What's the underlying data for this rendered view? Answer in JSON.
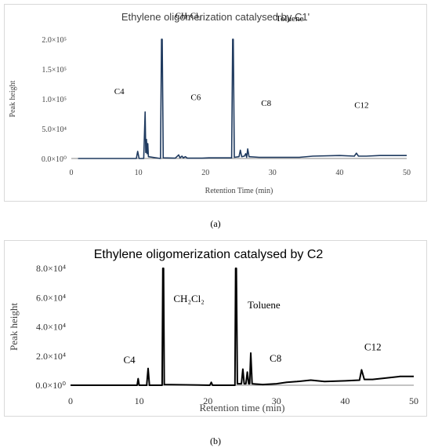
{
  "chart_data": [
    {
      "type": "line",
      "title": "Ethylene oligomerization catalysed by C1'",
      "xlabel": "Retention Time (min)",
      "ylabel": "Peak height",
      "xlim": [
        0,
        50
      ],
      "ylim": [
        0,
        200000
      ],
      "x_ticks": [
        "0",
        "10",
        "20",
        "30",
        "40",
        "50"
      ],
      "y_ticks": [
        "0.0×10⁰",
        "5.0×10⁴",
        "1.0×10⁵",
        "1.5×10⁵",
        "2.0×10⁵"
      ],
      "line_color": "#1f3a5f",
      "grid": false,
      "annotations": [
        {
          "text": "C4",
          "x": 6.4,
          "y": 108000
        },
        {
          "text": "CH₂Cl₂",
          "x": 15.5,
          "y": 235000
        },
        {
          "text": "C6",
          "x": 17.8,
          "y": 98000
        },
        {
          "text": "Toluene",
          "x": 30.5,
          "y": 230000
        },
        {
          "text": "C8",
          "x": 28.3,
          "y": 88000
        },
        {
          "text": "C12",
          "x": 42.2,
          "y": 85000
        }
      ],
      "series": [
        {
          "points": [
            [
              1,
              0
            ],
            [
              5,
              0
            ],
            [
              9.7,
              0
            ],
            [
              9.9,
              12000
            ],
            [
              10.1,
              0
            ],
            [
              10.8,
              0
            ],
            [
              11.0,
              78000
            ],
            [
              11.1,
              10000
            ],
            [
              11.2,
              32000
            ],
            [
              11.3,
              8000
            ],
            [
              11.4,
              25000
            ],
            [
              11.5,
              3000
            ],
            [
              13.3,
              0
            ],
            [
              13.45,
              200000
            ],
            [
              13.55,
              200000
            ],
            [
              13.7,
              1000
            ],
            [
              15.5,
              500
            ],
            [
              16.0,
              6000
            ],
            [
              16.2,
              1000
            ],
            [
              16.5,
              4000
            ],
            [
              16.7,
              1000
            ],
            [
              17.0,
              3000
            ],
            [
              17.3,
              500
            ],
            [
              19.5,
              500
            ],
            [
              20.5,
              1000
            ],
            [
              23.9,
              1000
            ],
            [
              24.05,
              200000
            ],
            [
              24.15,
              200000
            ],
            [
              24.3,
              2000
            ],
            [
              25.0,
              3000
            ],
            [
              25.2,
              14000
            ],
            [
              25.4,
              3000
            ],
            [
              25.8,
              4000
            ],
            [
              26.0,
              8000
            ],
            [
              26.15,
              2000
            ],
            [
              26.3,
              16000
            ],
            [
              26.5,
              3000
            ],
            [
              28,
              2000
            ],
            [
              30,
              2000
            ],
            [
              34,
              2000
            ],
            [
              36,
              4000
            ],
            [
              40,
              5000
            ],
            [
              42.2,
              4000
            ],
            [
              42.5,
              9000
            ],
            [
              42.8,
              4000
            ],
            [
              44,
              4000
            ],
            [
              46,
              5000
            ],
            [
              48,
              5000
            ],
            [
              50,
              5000
            ]
          ]
        }
      ]
    },
    {
      "type": "line",
      "title": "Ethylene oligomerization catalysed by C2",
      "xlabel": "Retention time (min)",
      "ylabel": "Peak height",
      "xlim": [
        0,
        50
      ],
      "ylim": [
        0,
        80000
      ],
      "x_ticks": [
        "0",
        "10",
        "20",
        "30",
        "40",
        "50"
      ],
      "y_ticks": [
        "0.0×10⁰",
        "2.0×10⁴",
        "4.0×10⁴",
        "6.0×10⁴",
        "8.0×10⁴"
      ],
      "line_color": "#000000",
      "grid": false,
      "annotations": [
        {
          "text": "C4",
          "x": 7.7,
          "y": 15000
        },
        {
          "text": "CH₂Cl₂",
          "x": 15.0,
          "y": 57000
        },
        {
          "text": "Toluene",
          "x": 25.8,
          "y": 52500
        },
        {
          "text": "C8",
          "x": 29.0,
          "y": 16000
        },
        {
          "text": "C12",
          "x": 42.8,
          "y": 24000
        }
      ],
      "series": [
        {
          "points": [
            [
              0,
              0
            ],
            [
              5,
              0
            ],
            [
              9.7,
              0
            ],
            [
              9.85,
              4500
            ],
            [
              10.0,
              0
            ],
            [
              11.1,
              0
            ],
            [
              11.3,
              11500
            ],
            [
              11.5,
              0
            ],
            [
              13.35,
              0
            ],
            [
              13.45,
              80000
            ],
            [
              13.55,
              80000
            ],
            [
              13.65,
              500
            ],
            [
              20.3,
              0
            ],
            [
              20.5,
              2000
            ],
            [
              20.7,
              0
            ],
            [
              23.95,
              0
            ],
            [
              24.05,
              80000
            ],
            [
              24.15,
              80000
            ],
            [
              24.3,
              1000
            ],
            [
              24.9,
              1000
            ],
            [
              25.1,
              11000
            ],
            [
              25.3,
              1000
            ],
            [
              25.55,
              1000
            ],
            [
              25.75,
              9000
            ],
            [
              25.95,
              1000
            ],
            [
              26.1,
              1000
            ],
            [
              26.25,
              22000
            ],
            [
              26.45,
              1000
            ],
            [
              28,
              500
            ],
            [
              30,
              1000
            ],
            [
              31.5,
              2000
            ],
            [
              33,
              2500
            ],
            [
              35,
              3500
            ],
            [
              37,
              2500
            ],
            [
              40,
              3000
            ],
            [
              42.1,
              3500
            ],
            [
              42.4,
              10500
            ],
            [
              42.8,
              4000
            ],
            [
              44,
              4000
            ],
            [
              46,
              5000
            ],
            [
              48,
              6000
            ],
            [
              50,
              6000
            ]
          ]
        }
      ]
    }
  ],
  "captions": [
    "(a)",
    "(b)"
  ]
}
